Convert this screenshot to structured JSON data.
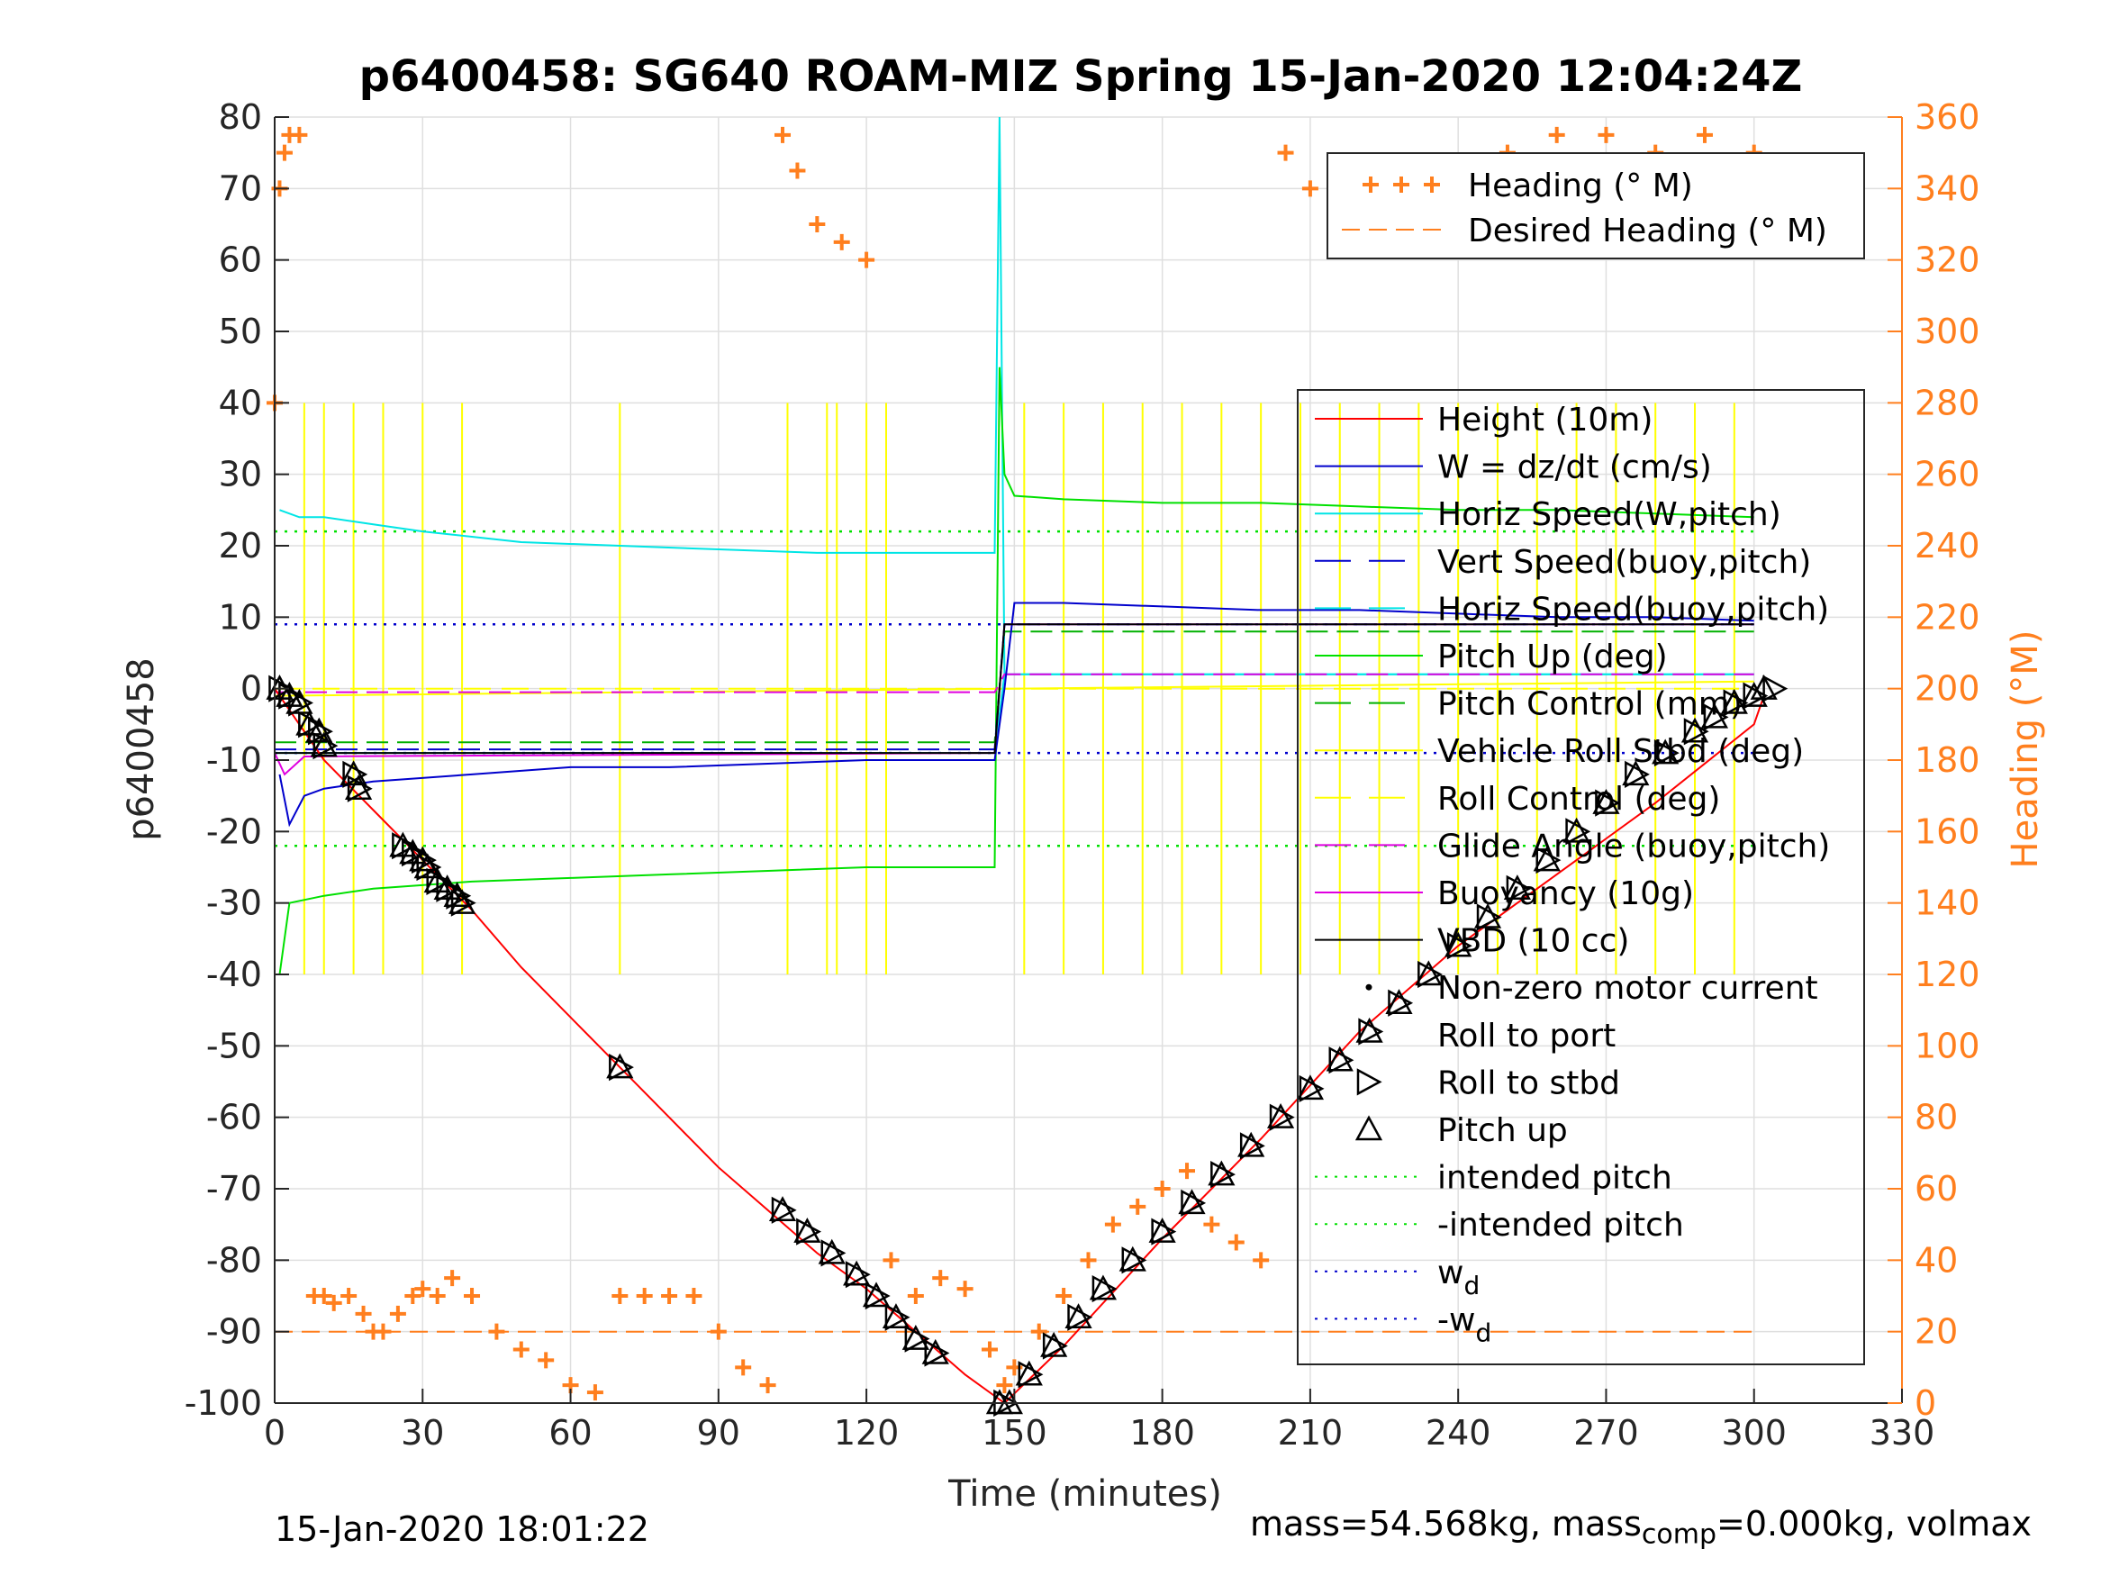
{
  "chart_data": {
    "type": "line",
    "title": "p6400458: SG640 ROAM-MIZ Spring 15-Jan-2020 12:04:24Z",
    "xlabel": "Time (minutes)",
    "ylabel": "p6400458",
    "y2label": "Heading (°M)",
    "xlim": [
      0,
      330
    ],
    "ylim": [
      -100,
      80
    ],
    "y2lim": [
      0,
      360
    ],
    "xticks": [
      0,
      30,
      60,
      90,
      120,
      150,
      180,
      210,
      240,
      270,
      300,
      330
    ],
    "yticks": [
      -100,
      -90,
      -80,
      -70,
      -60,
      -50,
      -40,
      -30,
      -20,
      -10,
      0,
      10,
      20,
      30,
      40,
      50,
      60,
      70,
      80
    ],
    "y2ticks": [
      0,
      20,
      40,
      60,
      80,
      100,
      120,
      140,
      160,
      180,
      200,
      220,
      240,
      260,
      280,
      300,
      320,
      340,
      360
    ],
    "grid": true,
    "colors": {
      "height": "#ff0000",
      "w": "#0000cc",
      "horiz_speed_w": "#00e5e5",
      "vert_speed_buoy": "#0000cc",
      "horiz_speed_buoy": "#00e5e5",
      "pitch_up": "#00e000",
      "pitch_control": "#00b000",
      "roll": "#ffff00",
      "roll_control": "#ffff00",
      "glide_angle": "#e000e0",
      "buoyancy": "#e000e0",
      "vbd": "#000000",
      "heading": "#ff7f1e",
      "desired_heading": "#ff7f1e",
      "intended_pitch": "#00e000",
      "wd": "#0000cc"
    },
    "series": [
      {
        "name": "Height (10m)",
        "x": [
          0,
          10,
          20,
          30,
          40,
          50,
          60,
          70,
          80,
          90,
          100,
          110,
          120,
          130,
          140,
          148,
          160,
          180,
          200,
          220,
          240,
          260,
          280,
          300,
          302
        ],
        "values": [
          0,
          -10,
          -17,
          -24,
          -31,
          -39,
          -46,
          -53,
          -60,
          -67,
          -73,
          -79,
          -84,
          -90,
          -96,
          -100,
          -92,
          -77,
          -63,
          -48,
          -36,
          -26,
          -16,
          -5,
          -1
        ]
      },
      {
        "name": "W = dz/dt (cm/s)",
        "x": [
          1,
          3,
          6,
          10,
          20,
          40,
          60,
          80,
          100,
          120,
          140,
          146,
          148,
          150,
          160,
          180,
          200,
          220,
          240,
          260,
          280,
          300
        ],
        "values": [
          -12,
          -19,
          -15,
          -14,
          -13,
          -12,
          -11,
          -11,
          -10.5,
          -10,
          -10,
          -10,
          0,
          12,
          12,
          11.5,
          11,
          11,
          10.5,
          10,
          10,
          9.5
        ]
      },
      {
        "name": "Horiz Speed(W,pitch)",
        "x": [
          1,
          5,
          10,
          20,
          30,
          50,
          70,
          90,
          110,
          130,
          146,
          147,
          148,
          150,
          300
        ],
        "values": [
          25,
          24,
          24,
          23,
          22,
          20.5,
          20,
          19.5,
          19,
          19,
          19,
          80,
          2,
          2,
          2
        ]
      },
      {
        "name": "Vert Speed(buoy,pitch)",
        "x": [
          0,
          146,
          148,
          300
        ],
        "values": [
          -8.5,
          -8.5,
          9,
          9
        ]
      },
      {
        "name": "Horiz Speed(buoy,pitch)",
        "x": [
          0,
          146,
          148,
          300
        ],
        "values": [
          -9,
          -9,
          2,
          2
        ]
      },
      {
        "name": "Pitch Up (deg)",
        "x": [
          1,
          3,
          10,
          20,
          40,
          60,
          80,
          100,
          120,
          140,
          146,
          147,
          148,
          150,
          160,
          180,
          200,
          220,
          240,
          260,
          280,
          300
        ],
        "values": [
          -40,
          -30,
          -29,
          -28,
          -27,
          -26.5,
          -26,
          -25.5,
          -25,
          -25,
          -25,
          45,
          30,
          27,
          26.5,
          26,
          26,
          25.5,
          25,
          25,
          24.5,
          24
        ]
      },
      {
        "name": "Pitch Control (mm)",
        "x": [
          0,
          146,
          148,
          300
        ],
        "values": [
          -7.5,
          -7.5,
          8,
          8
        ]
      },
      {
        "name": "Vehicle Roll Stbd (deg)",
        "x": [
          0,
          300
        ],
        "values": [
          -1,
          1
        ]
      },
      {
        "name": "Roll Control (deg)",
        "x": [
          0,
          300
        ],
        "values": [
          0,
          0
        ]
      },
      {
        "name": "Glide Angle (buoy,pitch)",
        "x": [
          0,
          146,
          148,
          300
        ],
        "values": [
          -0.5,
          -0.5,
          2,
          2
        ]
      },
      {
        "name": "Buoyancy (10g)",
        "x": [
          0,
          2,
          6,
          146,
          148,
          300
        ],
        "values": [
          -9,
          -12,
          -9.5,
          -9,
          9,
          9
        ]
      },
      {
        "name": "VBD (10 cc)",
        "x": [
          0,
          2,
          146,
          148,
          300
        ],
        "values": [
          -9,
          -9,
          -9,
          9,
          9
        ]
      },
      {
        "name": "Non-zero motor current",
        "x": [],
        "values": []
      },
      {
        "name": "Roll to port",
        "x": [],
        "values": []
      },
      {
        "name": "Roll to stbd",
        "x": [
          1,
          3,
          5,
          7,
          9,
          10,
          16,
          17,
          26,
          28,
          30,
          31,
          33,
          35,
          37,
          38,
          70,
          103,
          108,
          113,
          118,
          122,
          126,
          130,
          134,
          148,
          153,
          158,
          163,
          168,
          174,
          180,
          186,
          192,
          198,
          204,
          210,
          216,
          222,
          228,
          234,
          240,
          246,
          252,
          258,
          264,
          270,
          276,
          282,
          288,
          292,
          296,
          300,
          304
        ],
        "values": [
          0,
          -1,
          -2,
          -5,
          -6,
          -8,
          -12,
          -14,
          -22,
          -23,
          -24,
          -25,
          -27,
          -28,
          -29,
          -30,
          -53,
          -73,
          -76,
          -79,
          -82,
          -85,
          -88,
          -91,
          -93,
          -100,
          -96,
          -92,
          -88,
          -84,
          -80,
          -76,
          -72,
          -68,
          -64,
          -60,
          -56,
          -52,
          -48,
          -44,
          -40,
          -36,
          -32,
          -28,
          -24,
          -20,
          -16,
          -12,
          -9,
          -6,
          -4,
          -2,
          -1,
          0
        ]
      },
      {
        "name": "Pitch up",
        "x": [
          1,
          3,
          5,
          7,
          9,
          10,
          16,
          17,
          26,
          28,
          30,
          31,
          33,
          35,
          37,
          38,
          70,
          103,
          108,
          113,
          118,
          122,
          126,
          130,
          134,
          147,
          149,
          153,
          158,
          163,
          168,
          174,
          180,
          186,
          192,
          198,
          204,
          210,
          216,
          222,
          228,
          234,
          240,
          246,
          252,
          258,
          264,
          270,
          276,
          282,
          288,
          292,
          296,
          300,
          302
        ],
        "values": [
          0,
          -1,
          -2,
          -5,
          -6,
          -8,
          -12,
          -14,
          -22,
          -23,
          -24,
          -25,
          -27,
          -28,
          -29,
          -30,
          -53,
          -73,
          -76,
          -79,
          -82,
          -85,
          -88,
          -91,
          -93,
          -100,
          -100,
          -96,
          -92,
          -88,
          -84,
          -80,
          -76,
          -72,
          -68,
          -64,
          -60,
          -56,
          -52,
          -48,
          -44,
          -40,
          -36,
          -32,
          -28,
          -24,
          -20,
          -16,
          -12,
          -9,
          -6,
          -4,
          -2,
          -1,
          0
        ]
      },
      {
        "name": "intended pitch",
        "x": [
          0,
          300
        ],
        "values": [
          22,
          22
        ]
      },
      {
        "name": "-intended pitch",
        "x": [
          0,
          300
        ],
        "values": [
          -22,
          -22
        ]
      },
      {
        "name": "w_d",
        "x": [
          0,
          300
        ],
        "values": [
          9,
          9
        ]
      },
      {
        "name": "-w_d",
        "x": [
          0,
          300
        ],
        "values": [
          -9,
          -9
        ]
      },
      {
        "name": "Heading (° M)",
        "axis": "right",
        "x": [
          0,
          1,
          2,
          3,
          5,
          8,
          10,
          12,
          15,
          18,
          20,
          22,
          25,
          28,
          30,
          33,
          36,
          40,
          45,
          50,
          55,
          60,
          65,
          70,
          75,
          80,
          85,
          90,
          95,
          100,
          103,
          106,
          110,
          115,
          120,
          125,
          130,
          135,
          140,
          145,
          148,
          150,
          155,
          160,
          165,
          170,
          175,
          180,
          185,
          190,
          195,
          200,
          205,
          210,
          220,
          230,
          240,
          250,
          260,
          270,
          280,
          290,
          295,
          300
        ],
        "values": [
          280,
          340,
          350,
          355,
          355,
          30,
          30,
          28,
          30,
          25,
          20,
          20,
          25,
          30,
          32,
          30,
          35,
          30,
          20,
          15,
          12,
          5,
          3,
          30,
          30,
          30,
          30,
          20,
          10,
          5,
          355,
          345,
          330,
          325,
          320,
          40,
          30,
          35,
          32,
          15,
          5,
          10,
          20,
          30,
          40,
          50,
          55,
          60,
          65,
          50,
          45,
          40,
          350,
          340,
          335,
          340,
          345,
          350,
          355,
          355,
          350,
          355,
          345,
          350
        ]
      },
      {
        "name": "Desired Heading (° M)",
        "axis": "right",
        "x": [
          0,
          300
        ],
        "values": [
          20,
          20
        ]
      }
    ],
    "legend": "top-right"
  },
  "footer": {
    "timestamp": "15-Jan-2020 18:01:22",
    "mass_text_1": "mass=54.568kg, mass",
    "mass_sub": "comp",
    "mass_text_2": "=0.000kg, volmax"
  }
}
